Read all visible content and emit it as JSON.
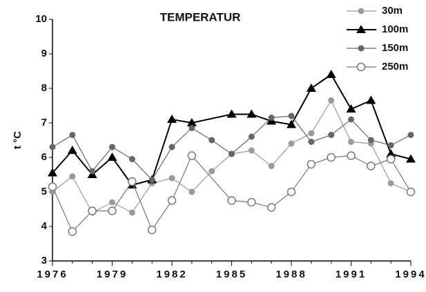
{
  "chart_data": {
    "type": "line",
    "title": "TEMPERATUR",
    "y_label": "t °C",
    "xlim": [
      1976,
      1994
    ],
    "xticks": [
      1976,
      1979,
      1982,
      1985,
      1988,
      1991,
      1994
    ],
    "ylim": [
      3,
      10
    ],
    "yticks": [
      3,
      4,
      5,
      6,
      7,
      8,
      9,
      10
    ],
    "legend": "top-right",
    "series": [
      {
        "name": "30m",
        "color": "#9a9a9a",
        "marker": "filled-circle",
        "x": [
          1976,
          1977,
          1978,
          1979,
          1980,
          1981,
          1982,
          1983,
          1984,
          1985,
          1986,
          1987,
          1988,
          1989,
          1990,
          1991,
          1992,
          1993,
          1994
        ],
        "values": [
          5.0,
          5.45,
          4.4,
          4.7,
          4.4,
          5.25,
          5.4,
          5.0,
          5.6,
          6.1,
          6.2,
          5.75,
          6.4,
          6.7,
          7.65,
          6.45,
          6.4,
          5.25,
          5.0
        ]
      },
      {
        "name": "100m",
        "color": "#000000",
        "marker": "triangle",
        "x": [
          1976,
          1977,
          1978,
          1979,
          1980,
          1981,
          1982,
          1983,
          1985,
          1986,
          1987,
          1988,
          1989,
          1990,
          1991,
          1992,
          1993,
          1994
        ],
        "values": [
          5.55,
          6.2,
          5.5,
          6.0,
          5.2,
          5.35,
          7.1,
          7.0,
          7.25,
          7.25,
          7.05,
          6.95,
          8.0,
          8.4,
          7.4,
          7.65,
          6.1,
          5.95
        ]
      },
      {
        "name": "150m",
        "color": "#666666",
        "marker": "filled-circle",
        "x": [
          1976,
          1977,
          1978,
          1979,
          1980,
          1981,
          1982,
          1983,
          1984,
          1985,
          1986,
          1987,
          1988,
          1989,
          1990,
          1991,
          1992,
          1993,
          1994
        ],
        "values": [
          6.3,
          6.65,
          5.6,
          6.3,
          5.95,
          5.35,
          6.3,
          6.85,
          6.5,
          6.1,
          6.6,
          7.15,
          7.2,
          6.45,
          6.65,
          7.1,
          6.5,
          6.35,
          6.65
        ]
      },
      {
        "name": "250m",
        "color": "#777777",
        "marker": "open-circle",
        "x": [
          1976,
          1977,
          1978,
          1979,
          1980,
          1981,
          1982,
          1983,
          1985,
          1986,
          1987,
          1988,
          1989,
          1990,
          1991,
          1992,
          1993,
          1994
        ],
        "values": [
          5.15,
          3.85,
          4.45,
          4.45,
          5.3,
          3.9,
          4.75,
          6.05,
          4.75,
          4.7,
          4.55,
          5.0,
          5.8,
          6.0,
          6.05,
          5.75,
          5.95,
          5.0
        ]
      }
    ]
  }
}
